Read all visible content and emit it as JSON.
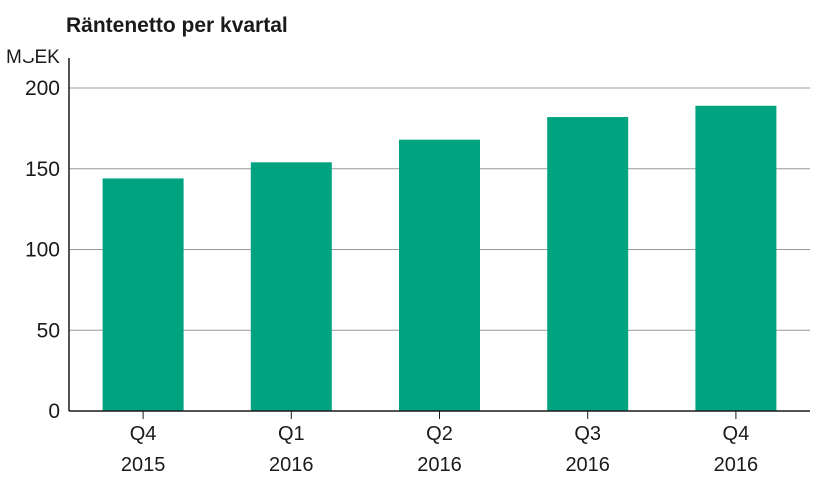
{
  "chart_data": {
    "type": "bar",
    "title": "Räntenetto per kvartal",
    "ylabel": "MSEK",
    "categories": [
      {
        "line1": "Q4",
        "line2": "2015"
      },
      {
        "line1": "Q1",
        "line2": "2016"
      },
      {
        "line1": "Q2",
        "line2": "2016"
      },
      {
        "line1": "Q3",
        "line2": "2016"
      },
      {
        "line1": "Q4",
        "line2": "2016"
      }
    ],
    "values": [
      144,
      154,
      168,
      182,
      189
    ],
    "ylim": [
      0,
      200
    ],
    "yticks": [
      "0",
      "50",
      "100",
      "150",
      "200"
    ],
    "grid": true,
    "bar_color": "#00a37f"
  }
}
